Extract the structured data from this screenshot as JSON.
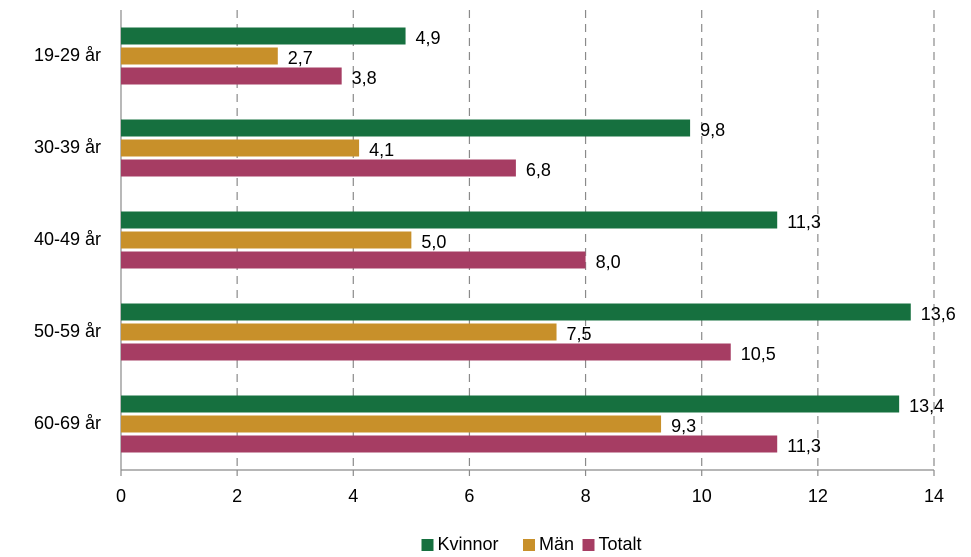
{
  "chart_data": {
    "type": "bar",
    "orientation": "horizontal",
    "categories": [
      "19-29 år",
      "30-39 år",
      "40-49 år",
      "50-59 år",
      "60-69 år"
    ],
    "series": [
      {
        "name": "Kvinnor",
        "color": "#16703f",
        "values": [
          4.9,
          9.8,
          11.3,
          13.6,
          13.4
        ],
        "value_labels": [
          "4,9",
          "9,8",
          "11,3",
          "13,6",
          "13,4"
        ]
      },
      {
        "name": "Män",
        "color": "#c8902a",
        "values": [
          2.7,
          4.1,
          5.0,
          7.5,
          9.3
        ],
        "value_labels": [
          "2,7",
          "4,1",
          "5,0",
          "7,5",
          "9,3"
        ]
      },
      {
        "name": "Totalt",
        "color": "#a63d63",
        "values": [
          3.8,
          6.8,
          8.0,
          10.5,
          11.3
        ],
        "value_labels": [
          "3,8",
          "6,8",
          "8,0",
          "10,5",
          "11,3"
        ]
      }
    ],
    "xlim": [
      0,
      14
    ],
    "xticks": [
      0,
      2,
      4,
      6,
      8,
      10,
      12,
      14
    ],
    "grid": true,
    "legend": "bottom"
  }
}
